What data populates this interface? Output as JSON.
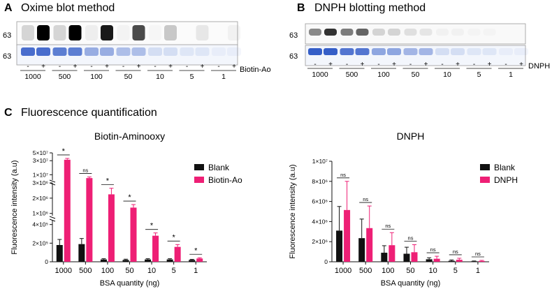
{
  "panels": {
    "A": {
      "letter": "A",
      "title": "Oxime blot method",
      "row_label": "63",
      "reagent": "Biotin-Ao"
    },
    "B": {
      "letter": "B",
      "title": "DNPH blotting method",
      "row_label": "63",
      "reagent": "DNPH"
    },
    "C": {
      "letter": "C",
      "title": "Fluorescence quantification"
    }
  },
  "blot": {
    "quantities": [
      "1000",
      "500",
      "100",
      "50",
      "10",
      "5",
      "1"
    ],
    "minus": "-",
    "plus": "+"
  },
  "chart_data": [
    {
      "type": "bar",
      "title": "Biotin-Aminooxy",
      "xlabel": "BSA quantity (ng)",
      "ylabel": "Fluorescence intensity (a.u)",
      "categories": [
        "1000",
        "500",
        "100",
        "50",
        "10",
        "5",
        "1"
      ],
      "series": [
        {
          "name": "Blank",
          "color": "#111111",
          "values": [
            180000,
            190000,
            25000,
            20000,
            25000,
            25000,
            20000
          ],
          "errors": [
            60000,
            60000,
            8000,
            8000,
            8000,
            8000,
            6000
          ]
        },
        {
          "name": "Biotin-Ao",
          "color": "#ee1f75",
          "values": [
            32000000,
            7000000,
            2250000,
            1380000,
            280000,
            160000,
            35000
          ],
          "errors": [
            3000000,
            1000000,
            400000,
            200000,
            30000,
            25000,
            8000
          ]
        }
      ],
      "yticks": [
        "0",
        "2×10⁵",
        "4×10⁵",
        "1×10⁶",
        "2×10⁶",
        "3×10⁶",
        "1×10⁷",
        "3×10⁷",
        "5×10⁷"
      ],
      "segments": [
        [
          0,
          450000
        ],
        [
          850000,
          3000000
        ],
        [
          5000000,
          50000000
        ]
      ],
      "significance": [
        "*",
        "ns",
        "*",
        "*",
        "*",
        "*",
        "*"
      ],
      "legend": "top-right"
    },
    {
      "type": "bar",
      "title": "DNPH",
      "xlabel": "BSA quantity (ng)",
      "ylabel": "Fluorescence intensity (a.u)",
      "categories": [
        "1000",
        "500",
        "100",
        "50",
        "10",
        "5",
        "1"
      ],
      "series": [
        {
          "name": "Blank",
          "color": "#111111",
          "values": [
            3100000,
            2350000,
            900000,
            800000,
            250000,
            100000,
            50000
          ],
          "errors": [
            2400000,
            1900000,
            700000,
            650000,
            150000,
            80000,
            30000
          ]
        },
        {
          "name": "DNPH",
          "color": "#ee1f75",
          "values": [
            5150000,
            3350000,
            1650000,
            950000,
            300000,
            200000,
            80000
          ],
          "errors": [
            2850000,
            2200000,
            1250000,
            750000,
            250000,
            150000,
            60000
          ]
        }
      ],
      "yticks": [
        "0",
        "2×10⁶",
        "4×10⁶",
        "6×10⁶",
        "8×10⁶",
        "1×10⁷"
      ],
      "ylim": [
        0,
        10000000
      ],
      "significance": [
        "ns",
        "ns",
        "ns",
        "ns",
        "ns",
        "ns",
        "ns"
      ],
      "legend": "top-right"
    }
  ]
}
